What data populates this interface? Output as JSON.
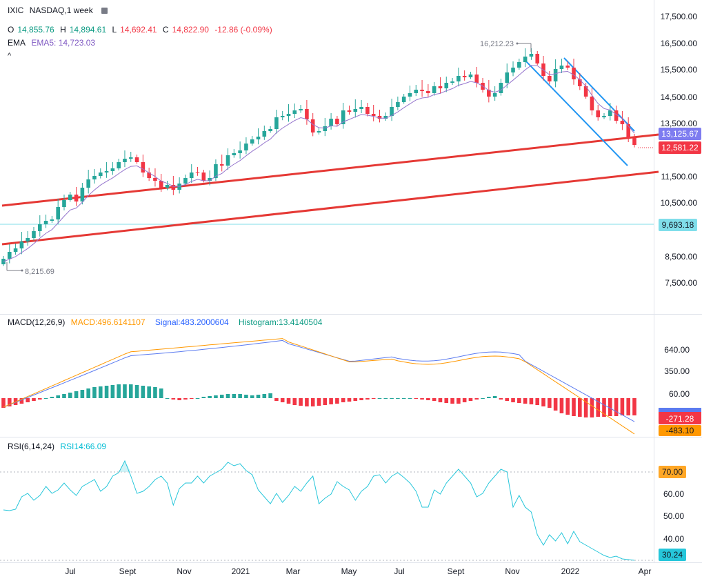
{
  "header": {
    "symbol": "IXIC",
    "interval": "NASDAQ,1 week",
    "ohlc": {
      "o_label": "O",
      "o_value": "14,855.76",
      "h_label": "H",
      "h_value": "14,894.61",
      "l_label": "L",
      "l_value": "14,692.41",
      "c_label": "C",
      "c_value": "14,822.90",
      "change": "-12.86 (-0.09%)"
    },
    "ema_label": "EMA",
    "ema_value": "EMA5: 14,723.03",
    "collapse_glyph": "^"
  },
  "macd_legend": {
    "name": "MACD(12,26,9)",
    "macd": "MACD:496.6141107",
    "signal": "Signal:483.2000604",
    "histogram": "Histogram:13.4140504"
  },
  "rsi_legend": {
    "name": "RSI(6,14,24)",
    "rsi": "RSI14:66.09"
  },
  "price_axis": {
    "ticks": [
      "17,500.00",
      "16,500.00",
      "15,500.00",
      "14,500.00",
      "13,500.00",
      "11,500.00",
      "10,500.00",
      "8,500.00",
      "7,500.00"
    ],
    "badge_upper": "13,125.67",
    "badge_close": "12,581.22",
    "badge_hline": "9,693.18"
  },
  "macd_axis": {
    "ticks": [
      "640.00",
      "350.00",
      "60.00"
    ],
    "badge_signal": "-271.28",
    "badge_macd": "-483.10"
  },
  "rsi_axis": {
    "ticks": [
      "60.00",
      "50.00",
      "40.00"
    ],
    "badge_70": "70.00",
    "badge_rsi": "30.24"
  },
  "annotations": {
    "high": "16,212.23",
    "low": "8,215.69"
  },
  "time_axis": {
    "labels": [
      "Jul",
      "Sept",
      "Nov",
      "2021",
      "Mar",
      "May",
      "Jul",
      "Sept",
      "Nov",
      "2022",
      "Apr"
    ]
  },
  "colors": {
    "up": "#26a69a",
    "down": "#f23645",
    "ema": "#7e57c2",
    "macd": "#ff9800",
    "signal": "#5b7bf0",
    "rsi": "#26c6da",
    "trendline": "#e53935",
    "channel": "#2196f3",
    "hline": "#80deea"
  },
  "chart_data": {
    "type": "candlestick",
    "title": "IXIC, NASDAQ, 1 week",
    "price_range": [
      7000,
      18000
    ],
    "last_close": 12581.22,
    "period_high": 16212.23,
    "period_low": 8215.69,
    "horizontal_level": 9693.18,
    "indicators": {
      "ema5": 14723.03,
      "macd": 496.6141107,
      "signal": 483.2000604,
      "histogram": 13.4140504,
      "macd_last": -483.1,
      "signal_last": -271.28,
      "rsi14": 66.09,
      "rsi_last": 30.24,
      "rsi_overbought": 70
    }
  }
}
